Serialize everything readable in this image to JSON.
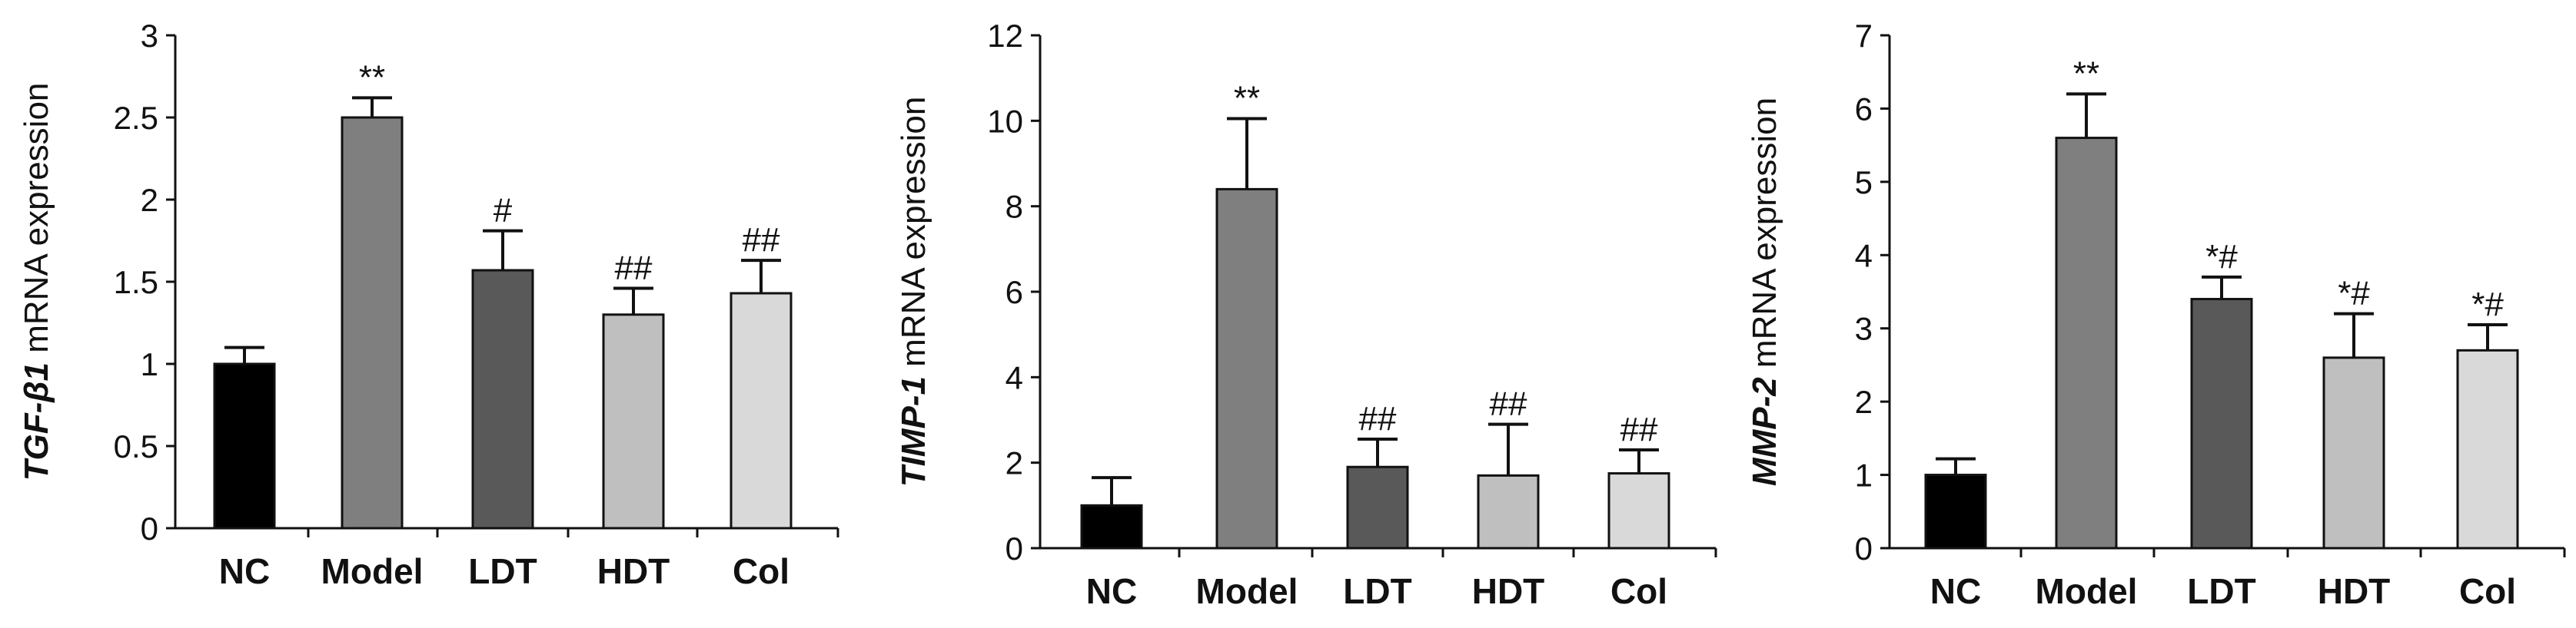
{
  "chart_data": [
    {
      "type": "bar",
      "ylabel": {
        "gene": "TGF-β1",
        "suffix": " mRNA expression"
      },
      "categories": [
        "NC",
        "Model",
        "LDT",
        "HDT",
        "Col"
      ],
      "values": [
        1.0,
        2.5,
        1.57,
        1.3,
        1.43
      ],
      "errors": [
        0.1,
        0.12,
        0.24,
        0.16,
        0.2
      ],
      "significance": [
        "",
        "**",
        "#",
        "##",
        "##"
      ],
      "ylim": [
        0,
        3
      ],
      "yticks": [
        "0",
        "0.5",
        "1",
        "1.5",
        "2",
        "2.5",
        "3"
      ],
      "grid": false
    },
    {
      "type": "bar",
      "ylabel": {
        "gene": "TIMP-1",
        "suffix": " mRNA expression"
      },
      "categories": [
        "NC",
        "Model",
        "LDT",
        "HDT",
        "Col"
      ],
      "values": [
        1.0,
        8.4,
        1.9,
        1.7,
        1.75
      ],
      "errors": [
        0.65,
        1.65,
        0.65,
        1.2,
        0.55
      ],
      "significance": [
        "",
        "**",
        "##",
        "##",
        "##"
      ],
      "ylim": [
        0,
        12
      ],
      "yticks": [
        "0",
        "2",
        "4",
        "6",
        "8",
        "10",
        "12"
      ],
      "grid": false
    },
    {
      "type": "bar",
      "ylabel": {
        "gene": "MMP-2",
        "suffix": " mRNA expression"
      },
      "categories": [
        "NC",
        "Model",
        "LDT",
        "HDT",
        "Col"
      ],
      "values": [
        1.0,
        5.6,
        3.4,
        2.6,
        2.7
      ],
      "errors": [
        0.22,
        0.6,
        0.3,
        0.6,
        0.35
      ],
      "significance": [
        "",
        "**",
        "*#",
        "*#",
        "*#"
      ],
      "ylim": [
        0,
        7
      ],
      "yticks": [
        "0",
        "1",
        "2",
        "3",
        "4",
        "5",
        "6",
        "7"
      ],
      "grid": false
    }
  ],
  "colors": {
    "bars": [
      "#000000",
      "#7f7f7f",
      "#595959",
      "#bfbfbf",
      "#d9d9d9"
    ],
    "axis": "#111111"
  }
}
